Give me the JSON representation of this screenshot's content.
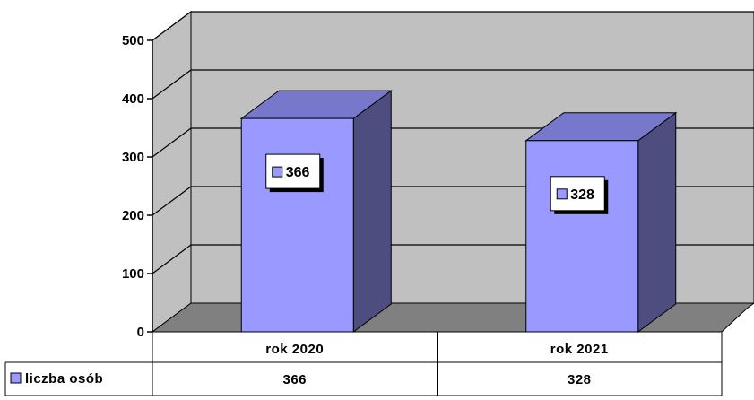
{
  "chart_data": {
    "type": "bar",
    "categories": [
      "rok 2020",
      "rok 2021"
    ],
    "series": [
      {
        "name": "liczba osób",
        "values": [
          366,
          328
        ],
        "color": "#9999ff"
      }
    ],
    "data_labels": [
      "366",
      "328"
    ],
    "ylim": [
      0,
      500
    ],
    "yticks": [
      0,
      100,
      200,
      300,
      400,
      500
    ],
    "grid": true,
    "data_table": true,
    "colors": {
      "bar_front": "#9999ff",
      "bar_top": "#7777cc",
      "bar_side": "#4d4d80",
      "wall": "#c0c0c0",
      "floor": "#808080"
    }
  }
}
